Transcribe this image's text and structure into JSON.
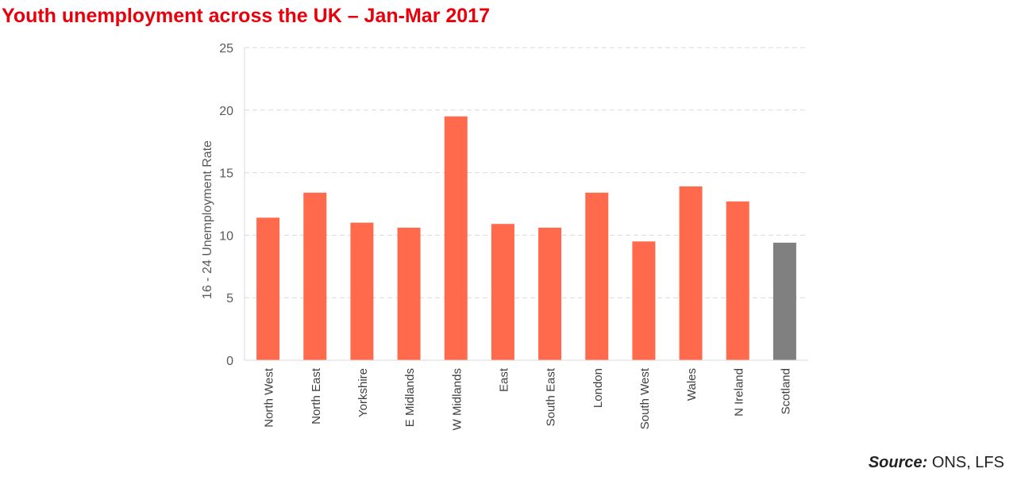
{
  "title": "Youth unemployment across the UK – Jan-Mar 2017",
  "source": {
    "label": "Source:",
    "text": " ONS, LFS"
  },
  "colors": {
    "primary_bar": "#ff6a4d",
    "highlight_bar": "#808080",
    "title": "#e8000b"
  },
  "chart_data": {
    "type": "bar",
    "categories": [
      "North West",
      "North East",
      "Yorkshire",
      "E Midlands",
      "W Midlands",
      "East",
      "South East",
      "London",
      "South West",
      "Wales",
      "N Ireland",
      "Scotland"
    ],
    "values": [
      11.4,
      13.4,
      11.0,
      10.6,
      19.5,
      10.9,
      10.6,
      13.4,
      9.5,
      13.9,
      12.7,
      9.4
    ],
    "highlight": [
      "Scotland"
    ],
    "ylabel": "16 - 24 Unemployment  Rate",
    "xlabel": "",
    "ylim": [
      0,
      25
    ],
    "yticks": [
      0,
      5,
      10,
      15,
      20,
      25
    ],
    "grid": true,
    "legend": "none"
  }
}
